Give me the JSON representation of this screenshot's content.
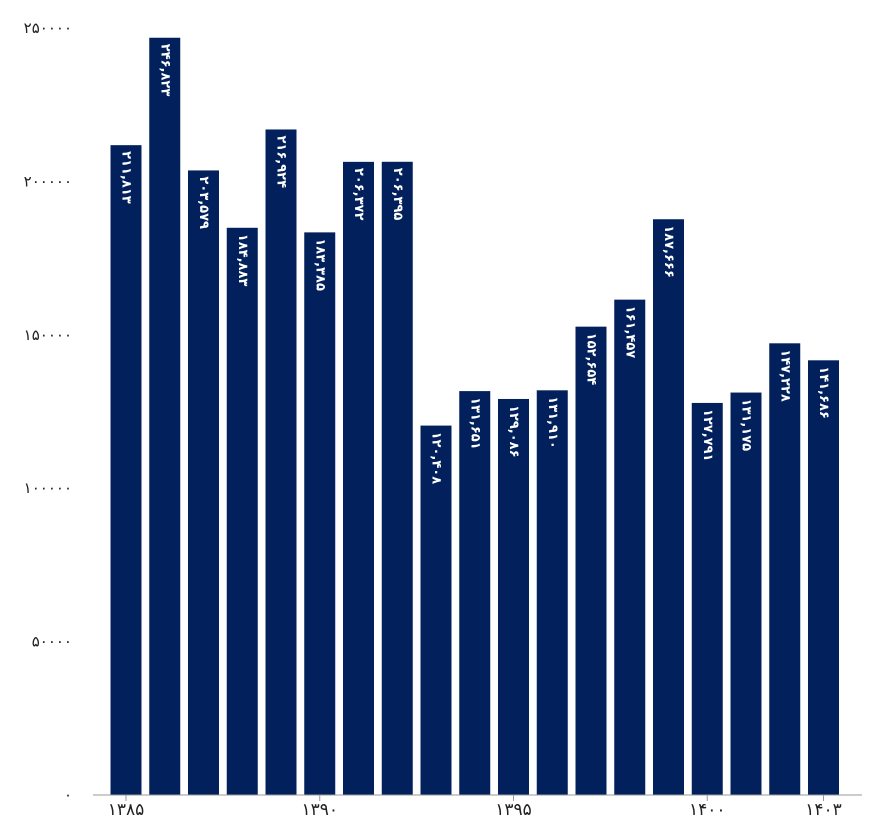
{
  "chart_data": {
    "type": "bar",
    "values": [
      211813,
      246823,
      203579,
      184883,
      216924,
      183385,
      206372,
      206395,
      120408,
      131651,
      129086,
      131910,
      152654,
      161457,
      187666,
      127791,
      131175,
      147228,
      141686
    ],
    "data_labels": [
      "۲۱۱,۸۱۳",
      "۲۴۶,۸۲۳",
      "۲۰۳,۵۷۹",
      "۱۸۴,۸۸۳",
      "۲۱۶,۹۲۴",
      "۱۸۳,۳۸۵",
      "۲۰۶,۳۷۲",
      "۲۰۶,۳۹۵",
      "۱۲۰,۴۰۸",
      "۱۳۱,۶۵۱",
      "۱۲۹,۰۸۶",
      "۱۳۱,۹۱۰",
      "۱۵۲,۶۵۴",
      "۱۶۱,۴۵۷",
      "۱۸۷,۶۶۶",
      "۱۲۷,۷۹۱",
      "۱۳۱,۱۷۵",
      "۱۴۷,۲۲۸",
      "۱۴۱,۶۸۶"
    ],
    "x_start": 1385,
    "xticks": [
      {
        "value": 1385,
        "label": "۱۳۸۵"
      },
      {
        "value": 1390,
        "label": "۱۳۹۰"
      },
      {
        "value": 1395,
        "label": "۱۳۹۵"
      },
      {
        "value": 1400,
        "label": "۱۴۰۰"
      },
      {
        "value": 1403,
        "label": "۱۴۰۳"
      }
    ],
    "yticks": [
      {
        "value": 0,
        "label": "۰"
      },
      {
        "value": 50000,
        "label": "۵۰۰۰۰"
      },
      {
        "value": 100000,
        "label": "۱۰۰۰۰۰"
      },
      {
        "value": 150000,
        "label": "۱۵۰۰۰۰"
      },
      {
        "value": 200000,
        "label": "۲۰۰۰۰۰"
      },
      {
        "value": 250000,
        "label": "۲۵۰۰۰۰"
      }
    ],
    "ylim": [
      0,
      250000
    ],
    "title": "",
    "xlabel": "",
    "ylabel": "",
    "grid": false,
    "bar_color": "#02215c",
    "label_color": "#ffffff",
    "axis_color": "#999999"
  }
}
